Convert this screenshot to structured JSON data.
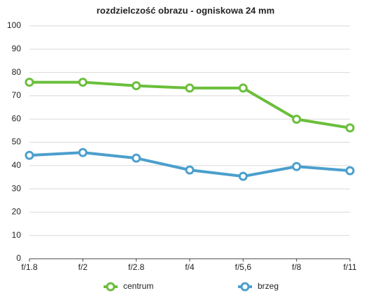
{
  "chart_data": {
    "type": "line",
    "title": "rozdzielczość obrazu - ogniskowa 24 mm",
    "categories": [
      "f/1.8",
      "f/2",
      "f/2.8",
      "f/4",
      "f/5,6",
      "f/8",
      "f/11"
    ],
    "series": [
      {
        "name": "centrum",
        "color": "#6abf3b",
        "values": [
          75.8,
          75.8,
          74.3,
          73.3,
          73.3,
          59.9,
          56.2
        ]
      },
      {
        "name": "brzeg",
        "color": "#4b9fcd",
        "values": [
          44.4,
          45.6,
          43.2,
          38.1,
          35.4,
          39.6,
          37.8
        ]
      }
    ],
    "ylim": [
      0,
      100
    ],
    "yticks": [
      0,
      10,
      20,
      30,
      40,
      50,
      60,
      70,
      80,
      90,
      100
    ],
    "grid": true
  }
}
